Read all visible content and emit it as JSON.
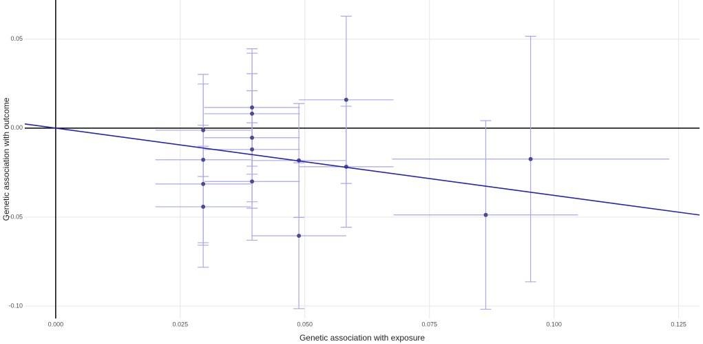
{
  "chart_data": {
    "type": "scatter",
    "x_label": "Genetic association with exposure",
    "y_label": "Genetic association with outcome",
    "x": [
      0.0296,
      0.0296,
      0.0296,
      0.0296,
      0.0394,
      0.0394,
      0.0394,
      0.0394,
      0.0394,
      0.0488,
      0.0488,
      0.0583,
      0.0583,
      0.0863,
      0.0953
    ],
    "values": [
      -0.0012,
      -0.0178,
      -0.0314,
      -0.0442,
      0.0116,
      0.0081,
      -0.0054,
      -0.012,
      -0.03,
      -0.0182,
      -0.0605,
      0.0159,
      -0.0217,
      -0.0488,
      -0.0174
    ],
    "x_error": [
      0.0096,
      0.0096,
      0.0096,
      0.0096,
      0.0096,
      0.0096,
      0.0096,
      0.0096,
      0.0096,
      0.0096,
      0.0095,
      0.0095,
      0.0095,
      0.0185,
      0.0278
    ],
    "y_error": [
      0.026,
      0.048,
      0.033,
      0.034,
      0.033,
      0.034,
      0.036,
      0.033,
      0.033,
      0.032,
      0.041,
      0.047,
      0.034,
      0.053,
      0.069
    ],
    "point_color": "#4b4b8f",
    "error_color": "#aaa6ee",
    "line_slope": -0.378,
    "line_intercept": 0,
    "line_color": "#2323b4",
    "xlim": [
      -0.0062,
      0.1292
    ],
    "ylim": [
      -0.107,
      0.072
    ],
    "xticks": [
      {
        "value": 0,
        "label": "0.000"
      },
      {
        "value": 0.025,
        "label": "0.025"
      },
      {
        "value": 0.05,
        "label": "0.050"
      },
      {
        "value": 0.075,
        "label": "0.075"
      },
      {
        "value": 0.1,
        "label": "0.100"
      },
      {
        "value": 0.125,
        "label": "0.125"
      }
    ],
    "yticks": [
      {
        "value": -0.1,
        "label": "-0.10"
      },
      {
        "value": -0.05,
        "label": "-0.05"
      },
      {
        "value": 0,
        "label": "0.00"
      },
      {
        "value": 0.05,
        "label": "0.05"
      }
    ],
    "grid": true
  }
}
